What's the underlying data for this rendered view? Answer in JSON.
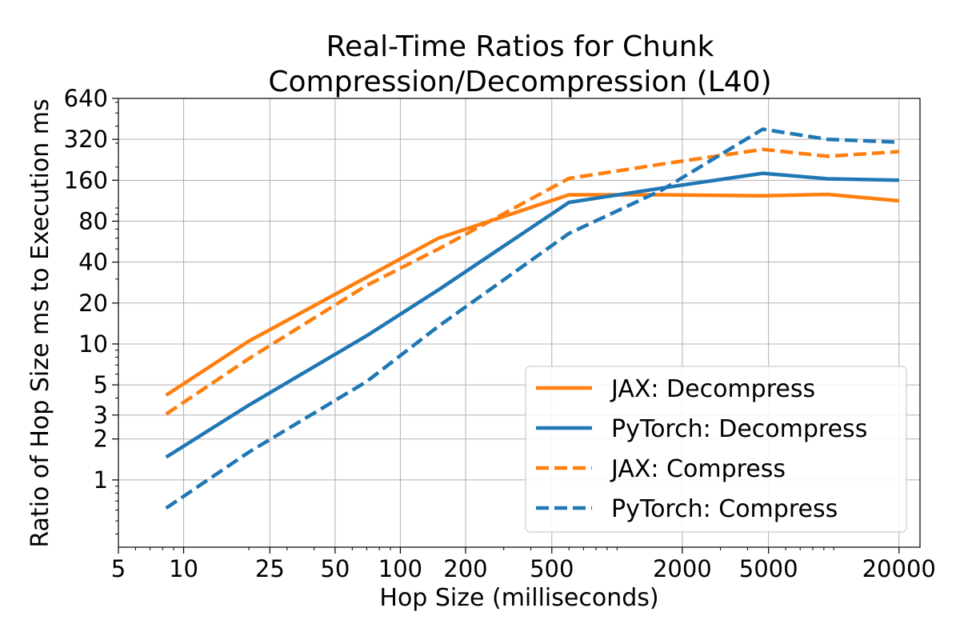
{
  "chart_data": {
    "type": "line",
    "title_lines": [
      "Real-Time Ratios for Chunk",
      "Compression/Decompression (L40)"
    ],
    "xlabel": "Hop Size (milliseconds)",
    "ylabel": "Ratio of Hop Size ms to Execution ms",
    "xscale": "log",
    "yscale": "log",
    "xlim": [
      5,
      25000
    ],
    "ylim": [
      0.32,
      640
    ],
    "xticks": [
      5,
      10,
      25,
      50,
      100,
      200,
      500,
      2000,
      5000,
      20000
    ],
    "xtick_labels": [
      "5",
      "10",
      "25",
      "50",
      "100",
      "200",
      "500",
      "2000",
      "5000",
      "20000"
    ],
    "yticks": [
      1,
      2,
      3,
      5,
      10,
      20,
      40,
      80,
      160,
      320,
      640
    ],
    "ytick_labels": [
      "1",
      "2",
      "3",
      "5",
      "10",
      "20",
      "40",
      "80",
      "160",
      "320",
      "640"
    ],
    "grid": true,
    "legend_position": "lower-right",
    "x": [
      8.3,
      20,
      70,
      150,
      600,
      1600,
      4700,
      9400,
      20000
    ],
    "series": [
      {
        "name": "JAX: Decompress",
        "color": "#ff7f0e",
        "dashed": false,
        "values": [
          4.2,
          10.5,
          31,
          60,
          125,
          125,
          123,
          126,
          113
        ]
      },
      {
        "name": "PyTorch: Decompress",
        "color": "#1f77b4",
        "dashed": false,
        "values": [
          1.47,
          3.55,
          11.5,
          25,
          110,
          140,
          180,
          164,
          160
        ]
      },
      {
        "name": "JAX: Compress",
        "color": "#ff7f0e",
        "dashed": false,
        "dash": "dashed",
        "values": [
          3.05,
          7.8,
          27,
          50,
          165,
          210,
          270,
          240,
          260
        ]
      },
      {
        "name": "PyTorch: Compress",
        "color": "#1f77b4",
        "dash": "dashed",
        "values": [
          0.62,
          1.6,
          5.3,
          13.5,
          65,
          135,
          380,
          320,
          305
        ]
      }
    ]
  }
}
